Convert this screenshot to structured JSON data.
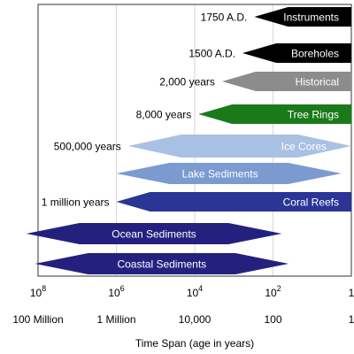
{
  "chart_data": {
    "type": "bar",
    "xscale": "log",
    "xlim": [
      100000000,
      1
    ],
    "xlabel": "Time Span (age in years)",
    "xticks": [
      {
        "value": 100000000,
        "exp": "8",
        "label": "100 Million"
      },
      {
        "value": 1000000,
        "exp": "6",
        "label": "1 Million"
      },
      {
        "value": 10000,
        "exp": "4",
        "label": "10,000"
      },
      {
        "value": 100,
        "exp": "2",
        "label": "100"
      },
      {
        "value": 1,
        "exp": "",
        "label": "1"
      }
    ],
    "tick_base": "10",
    "grid": true,
    "series": [
      {
        "name": "Instruments",
        "start": 300,
        "end": 1,
        "shape": "left-point",
        "age_label": "1750 A.D.",
        "color": "#000000",
        "text_color": "#ffffff"
      },
      {
        "name": "Boreholes",
        "start": 600,
        "end": 1,
        "shape": "left-point",
        "age_label": "1500 A.D.",
        "color": "#000000",
        "text_color": "#ffffff"
      },
      {
        "name": "Historical",
        "start": 2000,
        "end": 1,
        "shape": "left-point",
        "age_label": "2,000 years",
        "color": "#8c8c8c",
        "text_color": "#ffffff"
      },
      {
        "name": "Tree Rings",
        "start": 8000,
        "end": 1,
        "shape": "left-point",
        "age_label": "8,000 years",
        "color": "#1a7a1a",
        "text_color": "#ffffff"
      },
      {
        "name": "Ice Cores",
        "start": 500000,
        "end": 1,
        "shape": "diamond",
        "age_label": "500,000 years",
        "color": "#a9c1e3",
        "text_color": "#ffffff"
      },
      {
        "name": "Lake Sediments",
        "start": 1000000,
        "end": 1.8,
        "shape": "diamond",
        "age_label": "",
        "color": "#7b9ad0",
        "text_color": "#ffffff"
      },
      {
        "name": "Coral Reefs",
        "start": 1000000,
        "end": 1,
        "shape": "left-point",
        "age_label": "1 million years",
        "color": "#2b3596",
        "text_color": "#ffffff"
      },
      {
        "name": "Ocean Sediments",
        "start": 200000000,
        "end": 60,
        "shape": "diamond",
        "age_label": "",
        "color": "#24217e",
        "text_color": "#ffffff"
      },
      {
        "name": "Coastal Sediments",
        "start": 120000000,
        "end": 40,
        "shape": "diamond",
        "age_label": "",
        "color": "#24217e",
        "text_color": "#ffffff"
      }
    ]
  }
}
